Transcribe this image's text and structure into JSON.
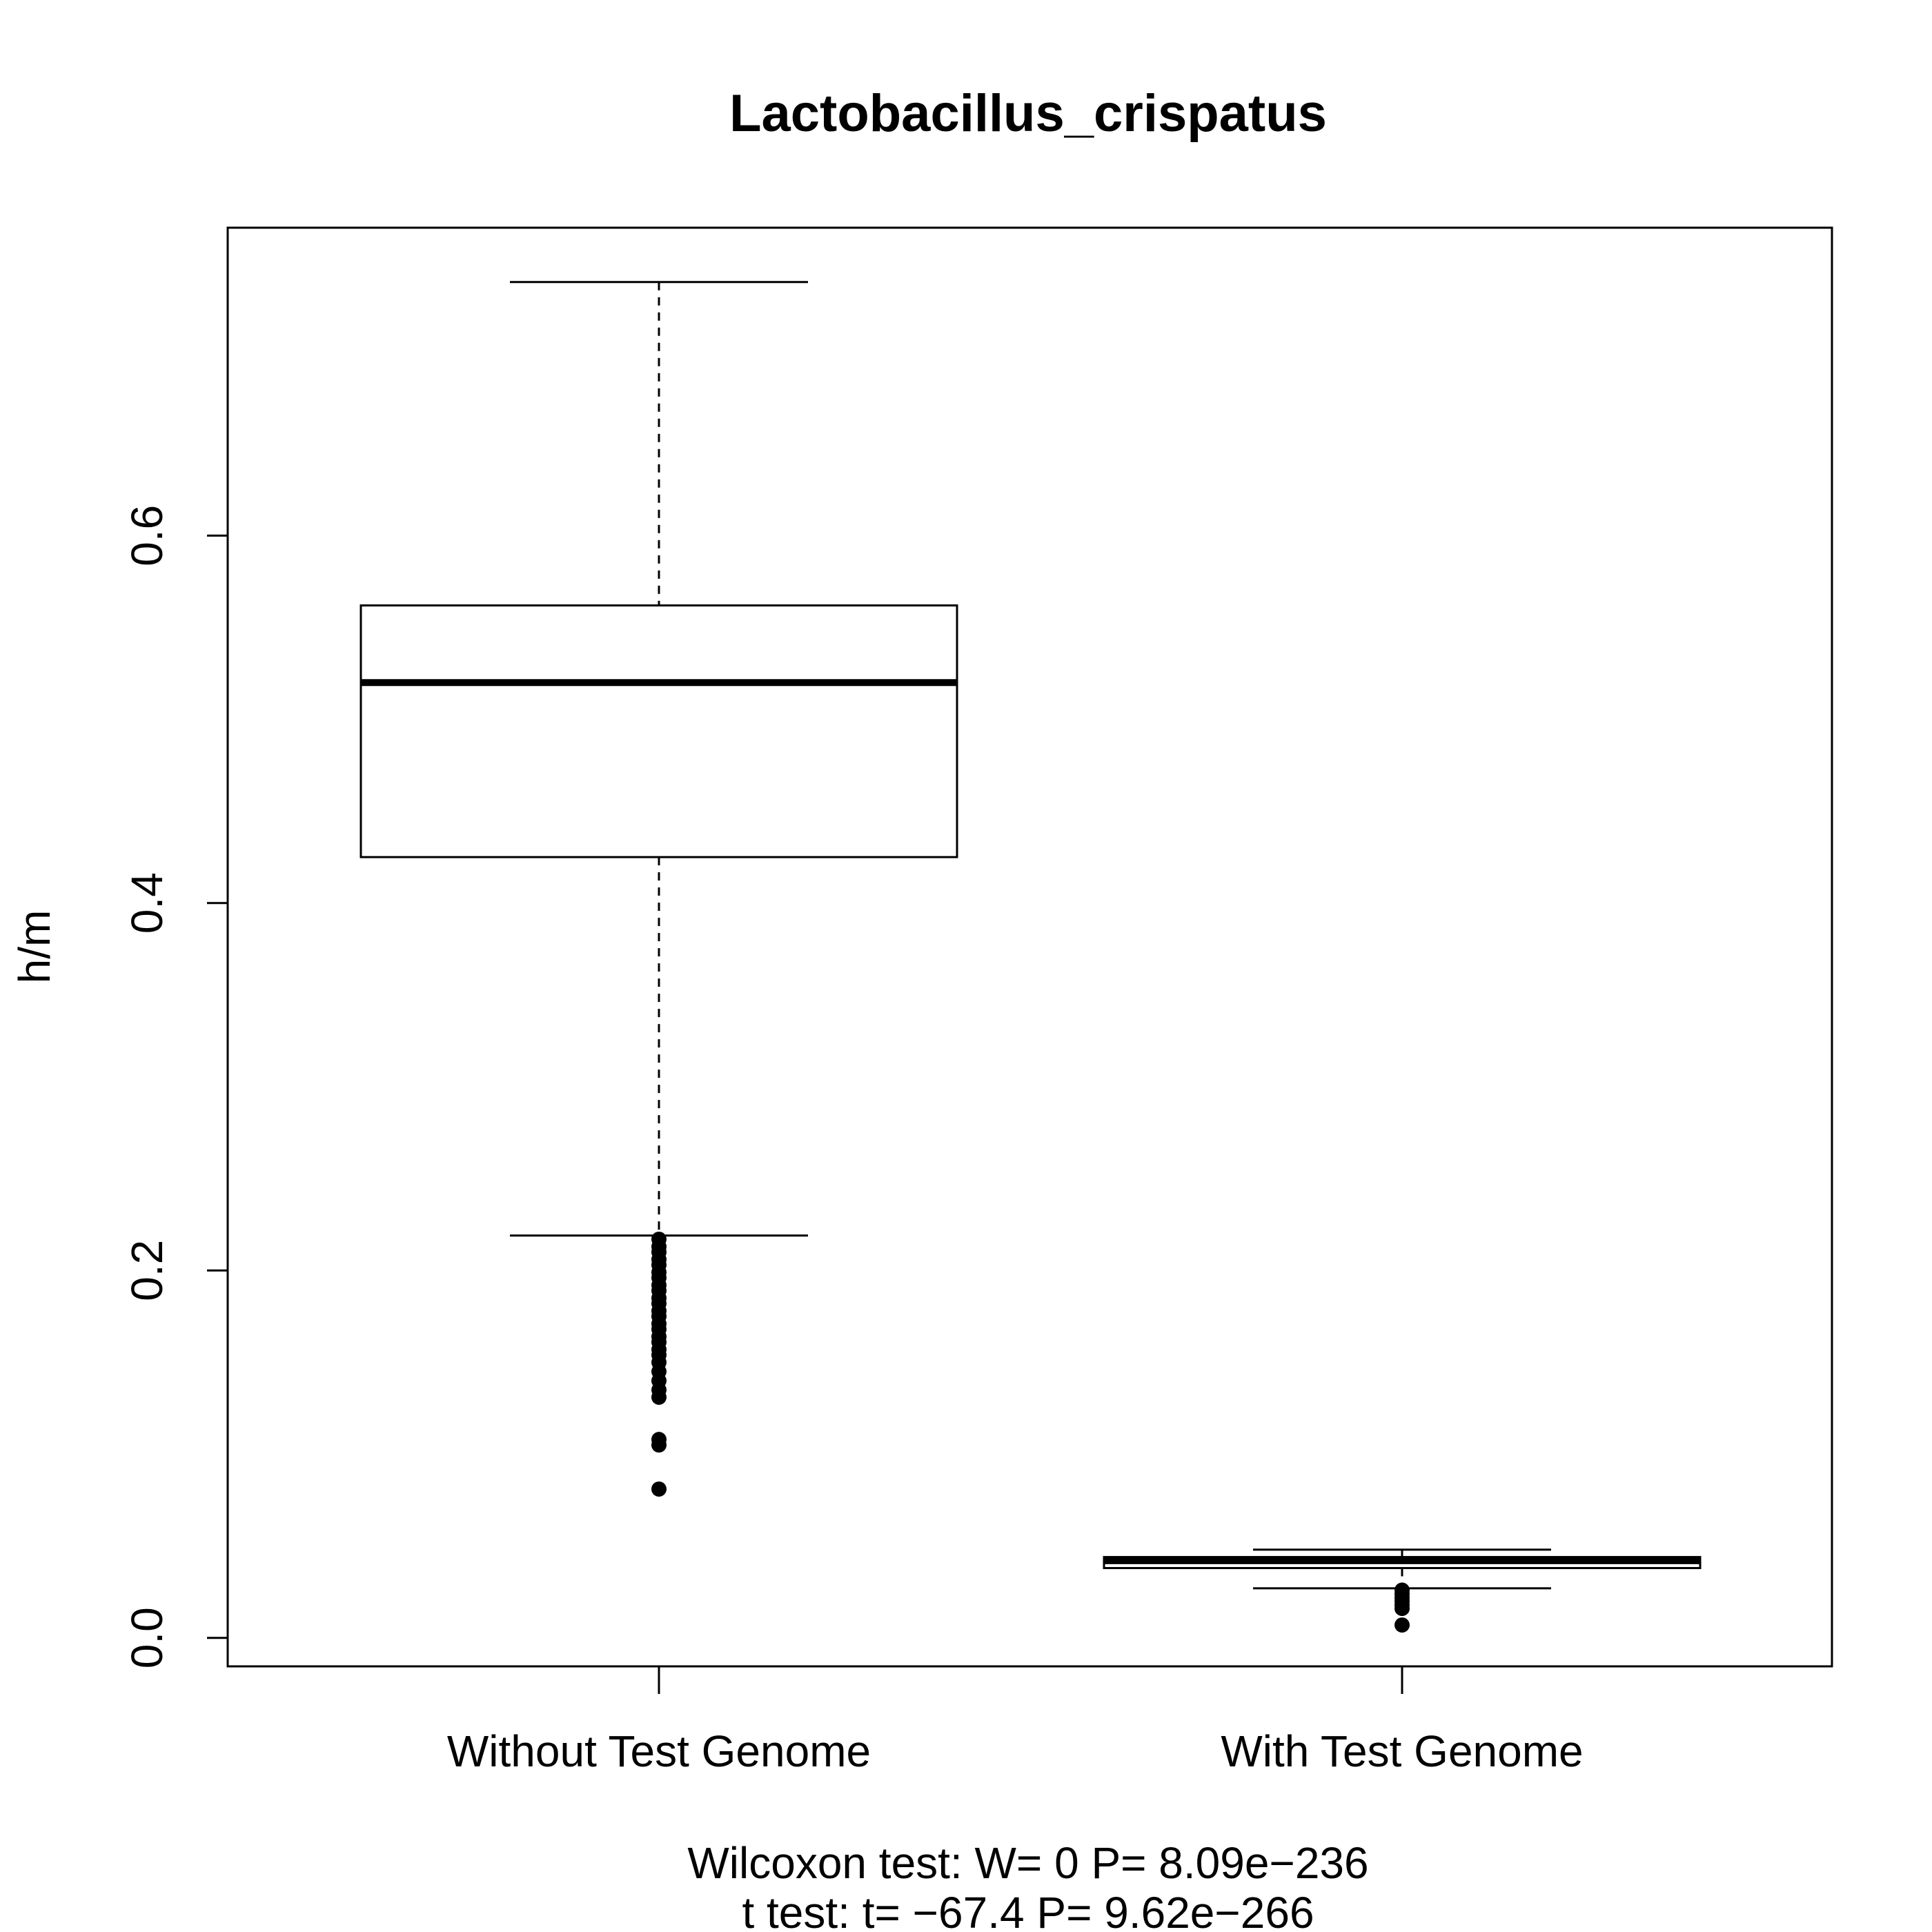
{
  "chart_data": {
    "type": "boxplot",
    "title": "Lactobacillus_crispatus",
    "xlabel": "",
    "ylabel": "h/m",
    "ylim": [
      -0.0155,
      0.7676
    ],
    "yticks": [
      "0.0",
      "0.2",
      "0.4",
      "0.6"
    ],
    "grid": false,
    "categories": [
      "Without Test Genome",
      "With Test Genome"
    ],
    "boxes": [
      {
        "category": "Without Test Genome",
        "whisker_low": 0.219,
        "q1": 0.425,
        "median": 0.52,
        "q3": 0.562,
        "whisker_high": 0.738,
        "outliers": [
          0.217,
          0.213,
          0.21,
          0.206,
          0.203,
          0.199,
          0.196,
          0.192,
          0.189,
          0.185,
          0.182,
          0.178,
          0.175,
          0.171,
          0.168,
          0.164,
          0.161,
          0.157,
          0.154,
          0.15,
          0.145,
          0.14,
          0.135,
          0.131,
          0.108,
          0.105,
          0.081
        ]
      },
      {
        "category": "With Test Genome",
        "whisker_low": 0.027,
        "q1": 0.038,
        "median": 0.042,
        "q3": 0.044,
        "whisker_high": 0.048,
        "outliers": [
          0.026,
          0.024,
          0.022,
          0.02,
          0.018,
          0.016,
          0.007
        ]
      }
    ],
    "footer": [
      "Wilcoxon test: W= 0 P= 8.09e−236",
      "t test: t= −67.4 P= 9.62e−266"
    ]
  }
}
